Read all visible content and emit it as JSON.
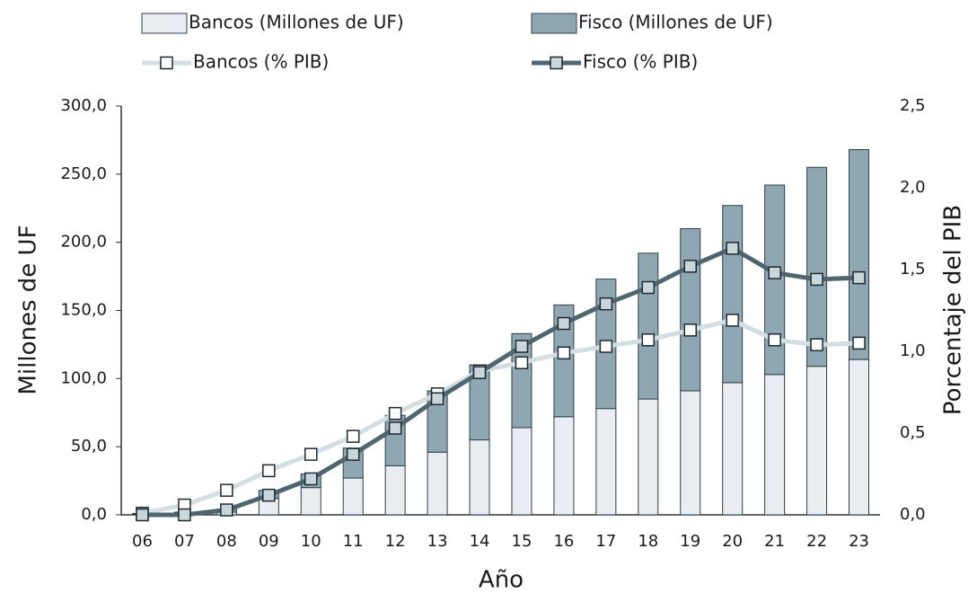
{
  "chart_data": {
    "type": "bar",
    "stacked": true,
    "x_label": "Año",
    "y_label": "Millones de UF",
    "y2_label": "Porcentaje del PIB",
    "categories": [
      "06",
      "07",
      "08",
      "09",
      "10",
      "11",
      "12",
      "13",
      "14",
      "15",
      "16",
      "17",
      "18",
      "19",
      "20",
      "21",
      "22",
      "23"
    ],
    "series": [
      {
        "name": "Bancos (Millones de UF)",
        "kind": "bar",
        "color": "#e9edf2",
        "values": [
          0.5,
          1,
          2,
          12,
          20,
          27,
          36,
          46,
          55,
          64,
          72,
          78,
          85,
          91,
          97,
          103,
          109,
          114
        ]
      },
      {
        "name": "Fisco (Millones de UF)",
        "kind": "bar",
        "color": "#8fa7b3",
        "values": [
          0.5,
          1,
          2,
          6,
          10,
          22,
          37,
          45,
          55,
          69,
          82,
          95,
          107,
          119,
          130,
          139,
          146,
          154
        ]
      },
      {
        "name": "Bancos (% PIB)",
        "kind": "line",
        "axis": "y2",
        "color": "#d3dee3",
        "marker_color": "#ffffff",
        "values": [
          0.01,
          0.06,
          0.15,
          0.27,
          0.37,
          0.48,
          0.62,
          0.74,
          0.88,
          0.93,
          0.99,
          1.03,
          1.07,
          1.13,
          1.19,
          1.07,
          1.04,
          1.05
        ]
      },
      {
        "name": "Fisco (% PIB)",
        "kind": "line",
        "axis": "y2",
        "color": "#4f6670",
        "marker_color": "#c9d6dc",
        "values": [
          0.0,
          0.0,
          0.03,
          0.12,
          0.22,
          0.37,
          0.53,
          0.71,
          0.87,
          1.03,
          1.17,
          1.29,
          1.39,
          1.52,
          1.63,
          1.48,
          1.44,
          1.45
        ]
      }
    ],
    "ylim": [
      0,
      300
    ],
    "yticks": [
      {
        "value": 0,
        "label": "0,0"
      },
      {
        "value": 50,
        "label": "50,0"
      },
      {
        "value": 100,
        "label": "100,0"
      },
      {
        "value": 150,
        "label": "150,0"
      },
      {
        "value": 200,
        "label": "200,0"
      },
      {
        "value": 250,
        "label": "250,0"
      },
      {
        "value": 300,
        "label": "300,0"
      }
    ],
    "y2lim": [
      0,
      2.5
    ],
    "y2ticks": [
      {
        "value": 0,
        "label": "0,0"
      },
      {
        "value": 0.5,
        "label": "0,5"
      },
      {
        "value": 1,
        "label": "1,0"
      },
      {
        "value": 1.5,
        "label": "1,5"
      },
      {
        "value": 2,
        "label": "2,0"
      },
      {
        "value": 2.5,
        "label": "2,5"
      }
    ],
    "grid": false
  }
}
